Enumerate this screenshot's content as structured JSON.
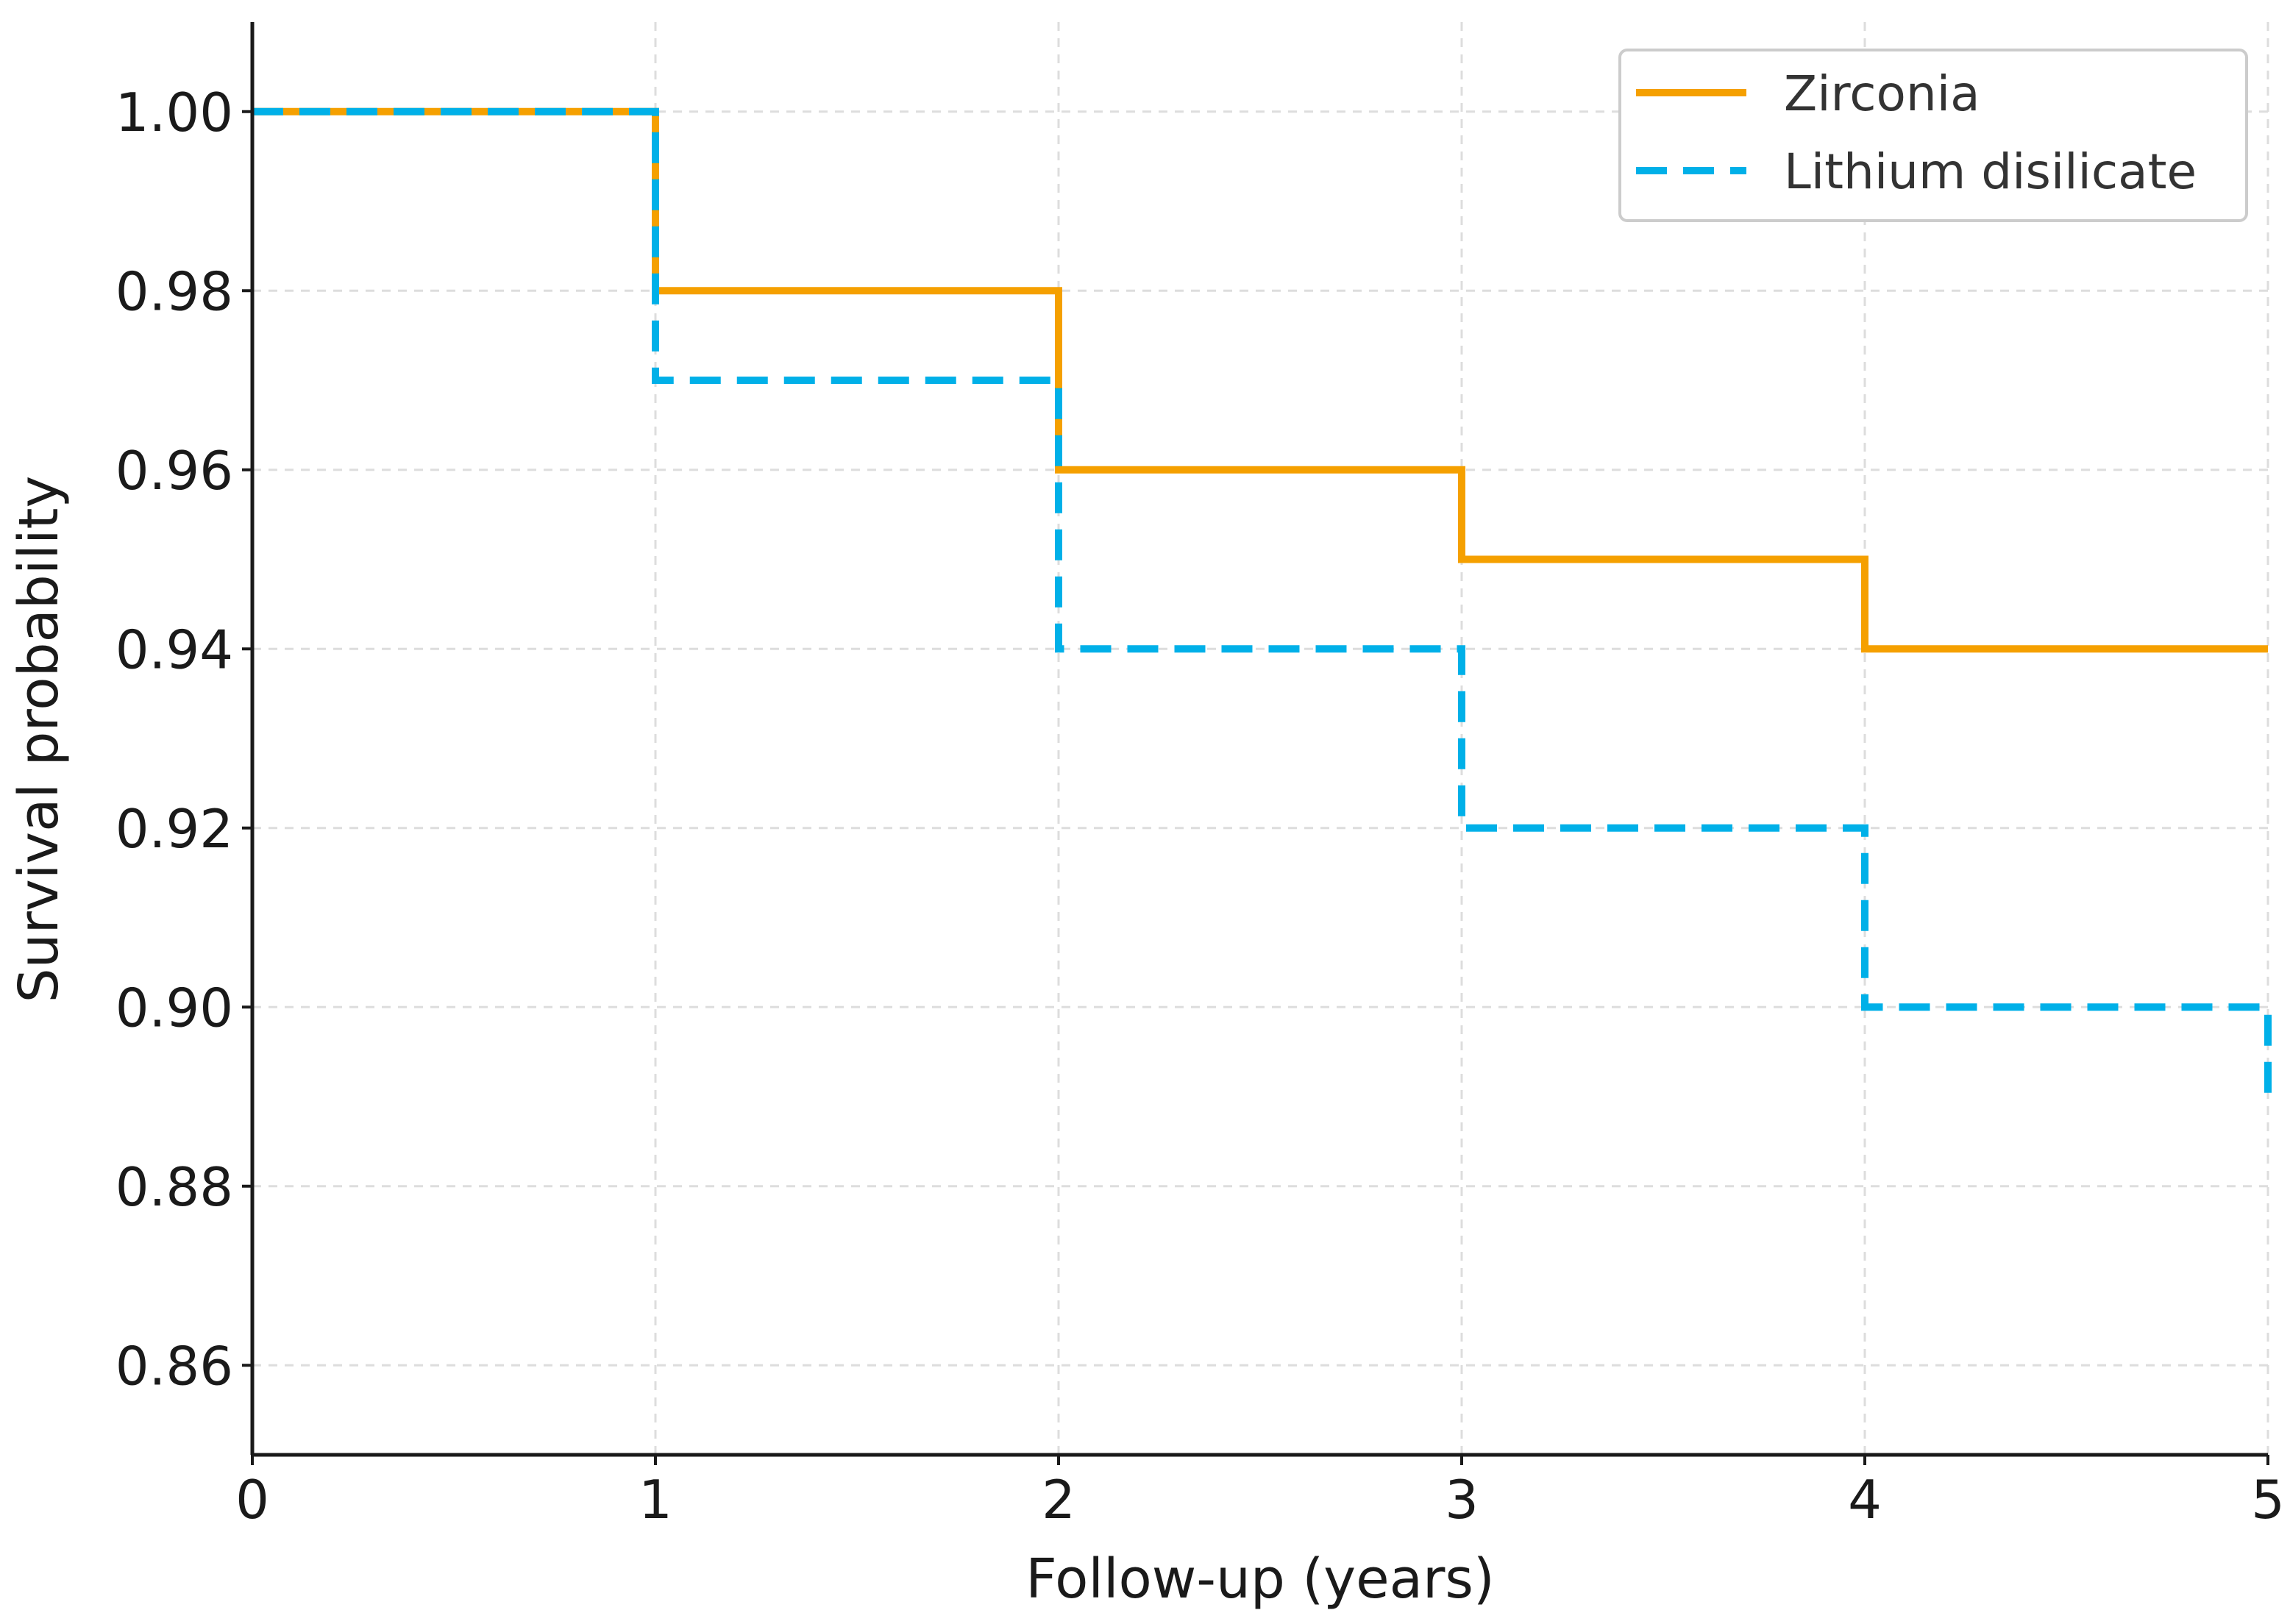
{
  "chart_data": {
    "type": "line",
    "step": "post",
    "title": "",
    "xlabel": "Follow-up (years)",
    "ylabel": "Survival probability",
    "xlim": [
      0,
      5
    ],
    "ylim": [
      0.85,
      1.01
    ],
    "x_ticks": [
      0,
      1,
      2,
      3,
      4,
      5
    ],
    "y_ticks": [
      0.86,
      0.88,
      0.9,
      0.92,
      0.94,
      0.96,
      0.98,
      1.0
    ],
    "grid": true,
    "legend_position": "top-right",
    "series": [
      {
        "name": "Zirconia",
        "color": "#f5a000",
        "style": "solid",
        "x": [
          0,
          1,
          2,
          3,
          4,
          5
        ],
        "y": [
          1.0,
          0.98,
          0.96,
          0.95,
          0.94,
          0.94
        ]
      },
      {
        "name": "Lithium disilicate",
        "color": "#00b0e8",
        "style": "dashed",
        "x": [
          0,
          1,
          2,
          3,
          4,
          5
        ],
        "y": [
          1.0,
          0.97,
          0.94,
          0.92,
          0.9,
          0.89
        ]
      }
    ]
  }
}
